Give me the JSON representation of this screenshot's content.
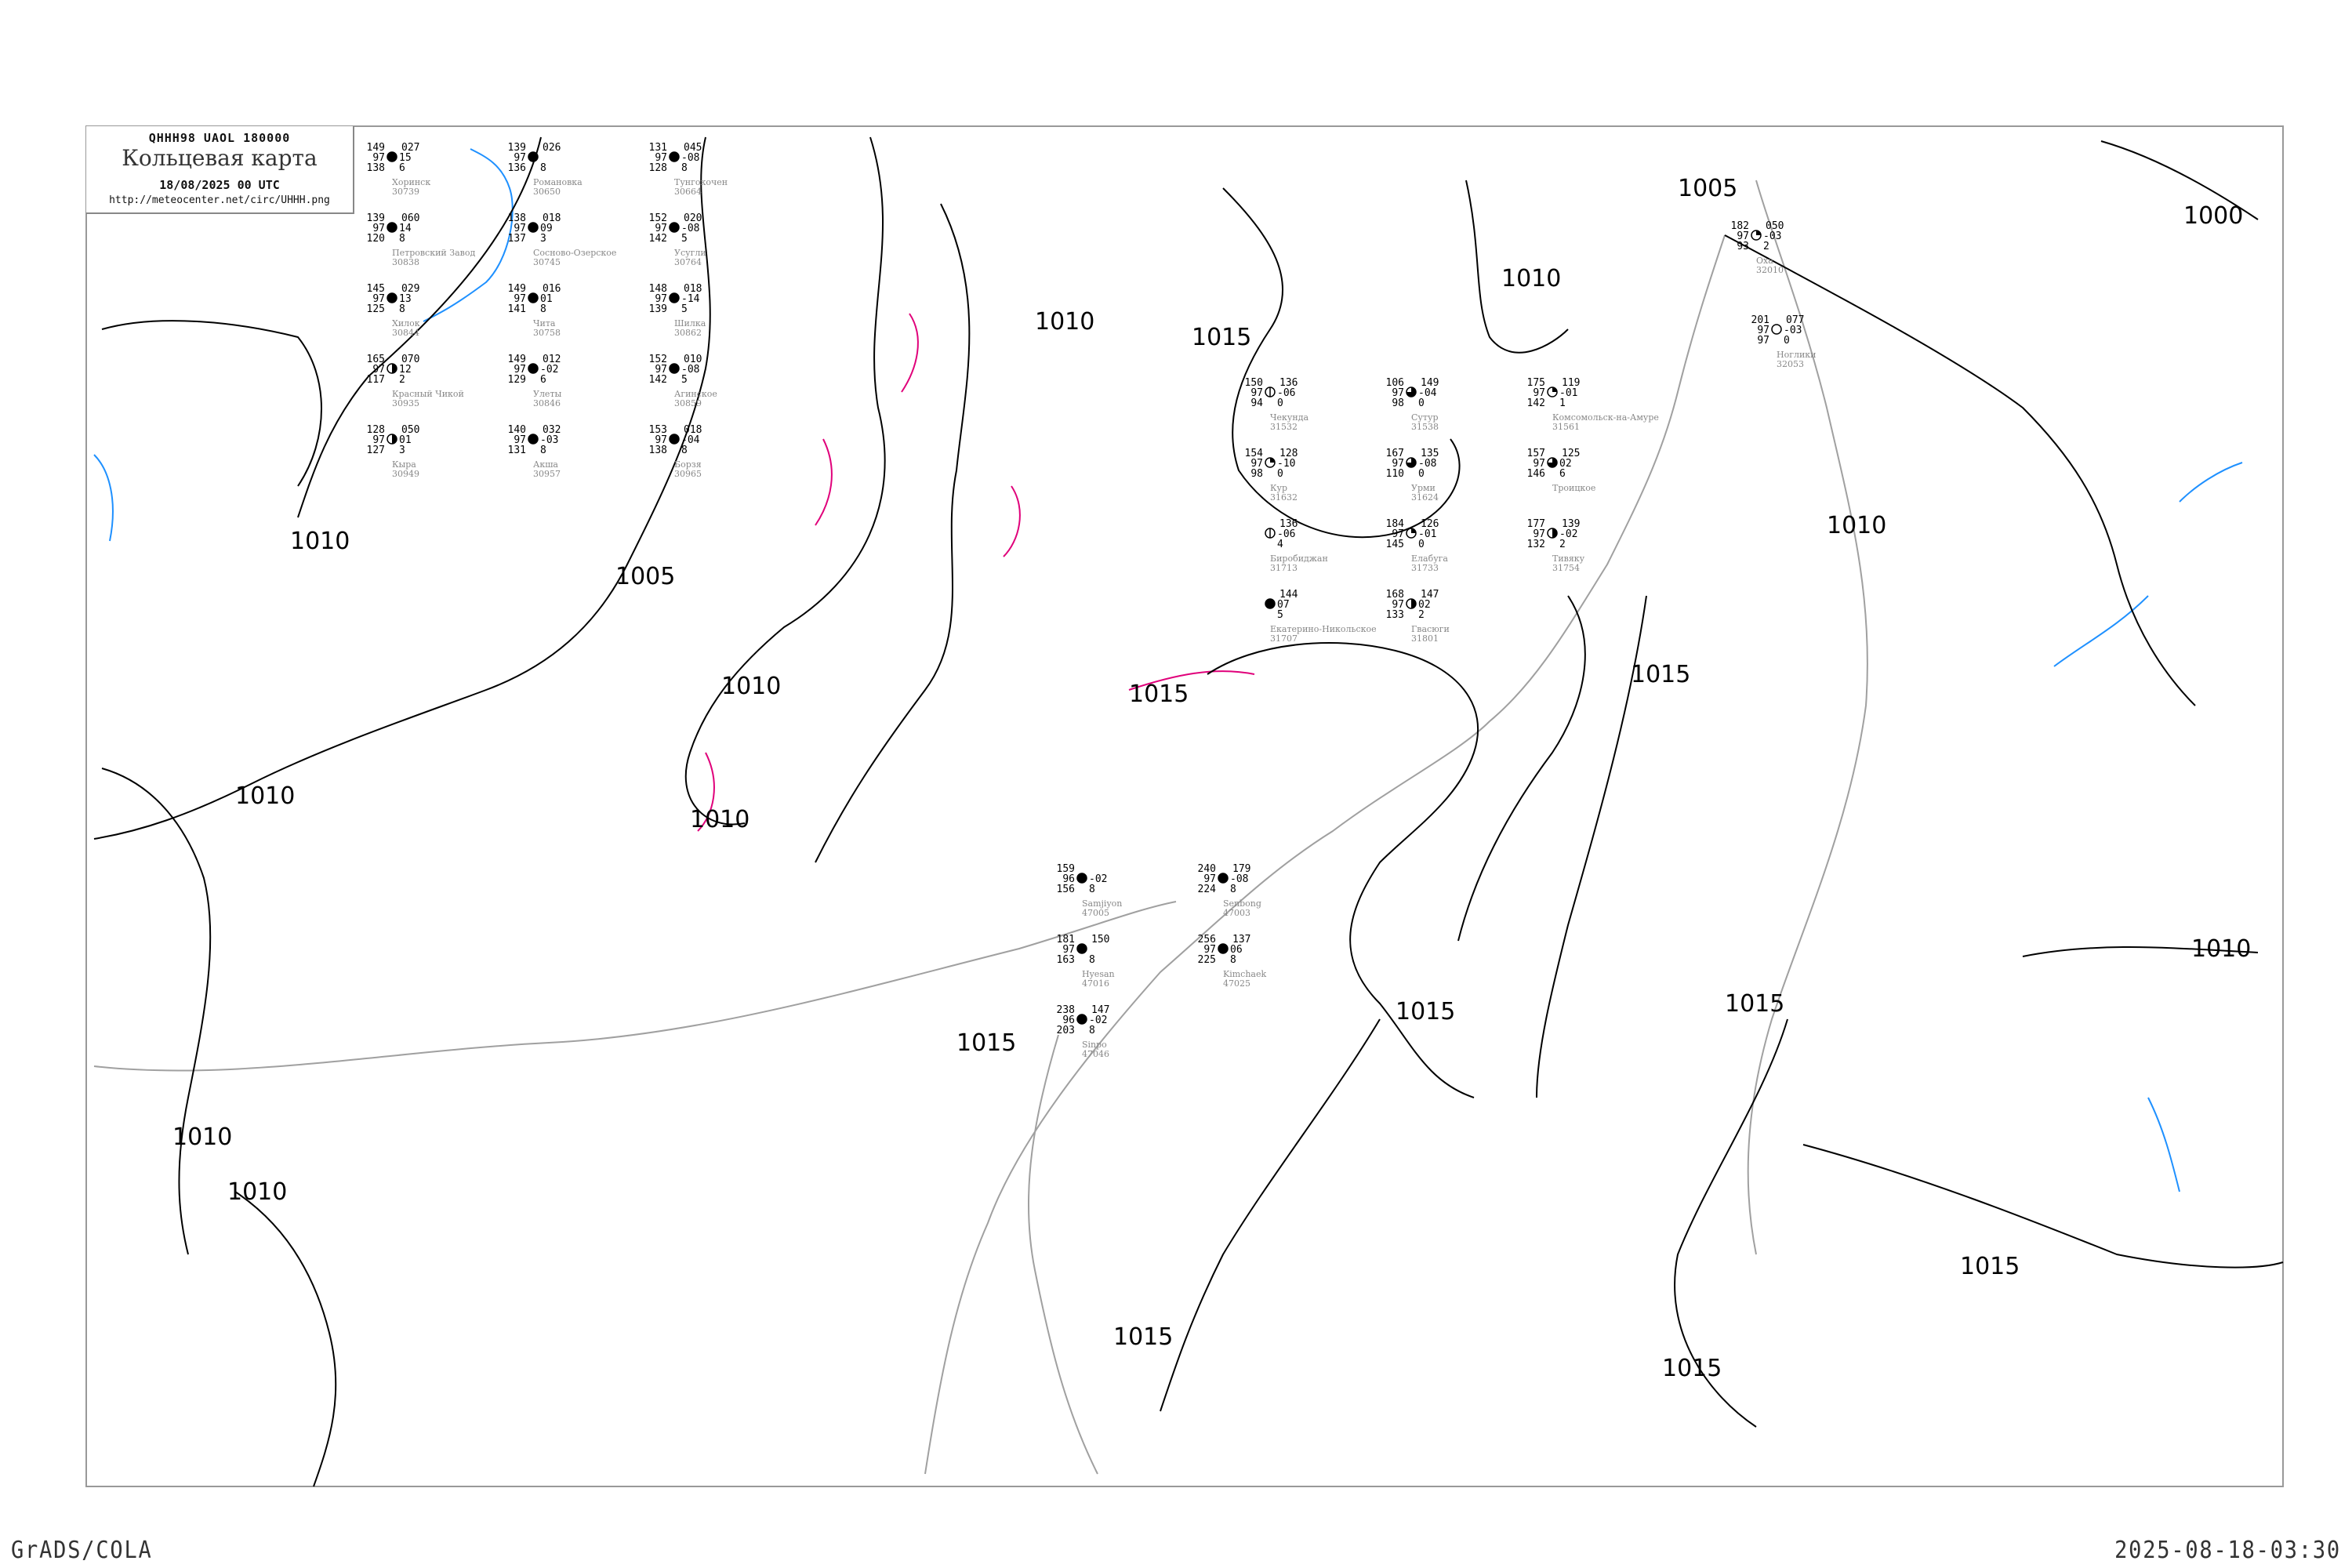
{
  "header": {
    "code": "QHHH98   UAOL   180000",
    "title": "Кольцевая карта",
    "date": "18/08/2025 00 UTC",
    "url": "http://meteocenter.net/circ/UHHH.png"
  },
  "footer": {
    "left": "GrADS/COLA",
    "right": "2025-08-18-03:30"
  },
  "colors": {
    "isobar": "#000000",
    "coastline": "#a0a0a0",
    "river": "#1e90ff",
    "isallobar": "#e0007a",
    "precip_green": "#00c832",
    "precip_yellow": "#f5f08c"
  },
  "isobar_labels": [
    "1010",
    "1005",
    "1010",
    "1010",
    "1010",
    "1010",
    "1010",
    "1010",
    "1015",
    "1015",
    "1015",
    "1015",
    "1015",
    "1010",
    "1005",
    "1000",
    "1010",
    "1015",
    "1010",
    "1015",
    "1015",
    "1015"
  ],
  "stations": [
    {
      "name": "Хоринск",
      "id": "30739",
      "tl": "149",
      "ml": "97",
      "bl": "138",
      "tr": "027",
      "mr": "15",
      "br": "6",
      "cover": "full"
    },
    {
      "name": "Сосново-Озерское",
      "id": "30745",
      "tl": "138",
      "ml": "97",
      "bl": "137",
      "tr": "018",
      "mr": "09",
      "br": "3",
      "cover": "full"
    },
    {
      "name": "Романовка",
      "id": "30650",
      "tl": "139",
      "ml": "97",
      "bl": "136",
      "tr": "026",
      "mr": "",
      "br": "8",
      "cover": "full"
    },
    {
      "name": "Тунгокочен",
      "id": "30664",
      "tl": "131",
      "ml": "97",
      "bl": "128",
      "tr": "045",
      "mr": "-08",
      "br": "8",
      "cover": "full"
    },
    {
      "name": "Петровский Завод",
      "id": "30838",
      "tl": "139",
      "ml": "97",
      "bl": "120",
      "tr": "060",
      "mr": "14",
      "br": "8",
      "cover": "full"
    },
    {
      "name": "Хилок",
      "id": "30844",
      "tl": "145",
      "ml": "97",
      "bl": "125",
      "tr": "029",
      "mr": "13",
      "br": "8",
      "cover": "full"
    },
    {
      "name": "Чита",
      "id": "30758",
      "tl": "149",
      "ml": "97",
      "bl": "141",
      "tr": "016",
      "mr": "01",
      "br": "8",
      "cover": "full"
    },
    {
      "name": "Усугли",
      "id": "30764",
      "tl": "152",
      "ml": "97",
      "bl": "142",
      "tr": "020",
      "mr": "-08",
      "br": "5",
      "cover": "full"
    },
    {
      "name": "Улеты",
      "id": "30846",
      "tl": "149",
      "ml": "97",
      "bl": "129",
      "tr": "012",
      "mr": "-02",
      "br": "6",
      "cover": "full"
    },
    {
      "name": "Шилка",
      "id": "30862",
      "tl": "148",
      "ml": "97",
      "bl": "139",
      "tr": "018",
      "mr": "-14",
      "br": "5",
      "cover": "full"
    },
    {
      "name": "Красный Чикой",
      "id": "30935",
      "tl": "165",
      "ml": "97",
      "bl": "117",
      "tr": "070",
      "mr": "12",
      "br": "2",
      "cover": "half"
    },
    {
      "name": "Агинское",
      "id": "30859",
      "tl": "152",
      "ml": "97",
      "bl": "142",
      "tr": "010",
      "mr": "-08",
      "br": "5",
      "cover": "full"
    },
    {
      "name": "Акша",
      "id": "30957",
      "tl": "140",
      "ml": "97",
      "bl": "131",
      "tr": "032",
      "mr": "-03",
      "br": "8",
      "cover": "full"
    },
    {
      "name": "Кыра",
      "id": "30949",
      "tl": "128",
      "ml": "97",
      "bl": "127",
      "tr": "050",
      "mr": "01",
      "br": "3",
      "cover": "half"
    },
    {
      "name": "Борзя",
      "id": "30965",
      "tl": "153",
      "ml": "97",
      "bl": "138",
      "tr": "018",
      "mr": "-04",
      "br": "8",
      "cover": "full"
    },
    {
      "name": "Чекунда",
      "id": "31532",
      "tl": "150",
      "ml": "97",
      "bl": "94",
      "tr": "136",
      "mr": "-06",
      "br": "0",
      "cover": "line"
    },
    {
      "name": "Сутур",
      "id": "31538",
      "tl": "106",
      "ml": "97",
      "bl": "98",
      "tr": "149",
      "mr": "-04",
      "br": "0",
      "cover": "three"
    },
    {
      "name": "Кур",
      "id": "31632",
      "tl": "154",
      "ml": "97",
      "bl": "98",
      "tr": "128",
      "mr": "-10",
      "br": "0",
      "cover": "quarter"
    },
    {
      "name": "Урми",
      "id": "31624",
      "tl": "167",
      "ml": "97",
      "bl": "110",
      "tr": "135",
      "mr": "-08",
      "br": "0",
      "cover": "three"
    },
    {
      "name": "Биробиджан",
      "id": "31713",
      "tl": "",
      "ml": "",
      "bl": "",
      "tr": "136",
      "mr": "-06",
      "br": "4",
      "cover": "line"
    },
    {
      "name": "Троицкое",
      "id": "",
      "tl": "157",
      "ml": "97",
      "bl": "146",
      "tr": "125",
      "mr": "02",
      "br": "6",
      "cover": "three"
    },
    {
      "name": "Елабуга",
      "id": "31733",
      "tl": "184",
      "ml": "97",
      "bl": "145",
      "tr": "126",
      "mr": "-01",
      "br": "0",
      "cover": "quarter"
    },
    {
      "name": "Тивяку",
      "id": "31754",
      "tl": "177",
      "ml": "97",
      "bl": "132",
      "tr": "139",
      "mr": "-02",
      "br": "2",
      "cover": "half"
    },
    {
      "name": "Гвасюги",
      "id": "31801",
      "tl": "168",
      "ml": "97",
      "bl": "133",
      "tr": "147",
      "mr": "02",
      "br": "2",
      "cover": "half"
    },
    {
      "name": "Комсомольск-на-Амуре",
      "id": "31561",
      "tl": "175",
      "ml": "97",
      "bl": "142",
      "tr": "119",
      "mr": "-01",
      "br": "1",
      "cover": "quarter"
    },
    {
      "name": "Екатерино-Никольское",
      "id": "31707",
      "tl": "",
      "ml": "",
      "bl": "",
      "tr": "144",
      "mr": "07",
      "br": "5",
      "cover": "full"
    },
    {
      "name": "Оха",
      "id": "32010",
      "tl": "182",
      "ml": "97",
      "bl": "93",
      "tr": "050",
      "mr": "-03",
      "br": "2",
      "cover": "quarter"
    },
    {
      "name": "Ноглики",
      "id": "32053",
      "tl": "201",
      "ml": "97",
      "bl": "97",
      "tr": "077",
      "mr": "-03",
      "br": "0",
      "cover": "clear"
    },
    {
      "name": "Hyesan",
      "id": "47016",
      "tl": "181",
      "ml": "97",
      "bl": "163",
      "tr": "150",
      "mr": "",
      "br": "8",
      "cover": "full"
    },
    {
      "name": "Samjiyon",
      "id": "47005",
      "tl": "159",
      "ml": "96",
      "bl": "156",
      "tr": "",
      "mr": "-02",
      "br": "8",
      "cover": "full"
    },
    {
      "name": "Kimchaek",
      "id": "47025",
      "tl": "256",
      "ml": "97",
      "bl": "225",
      "tr": "137",
      "mr": "06",
      "br": "8",
      "cover": "full"
    },
    {
      "name": "Sinpo",
      "id": "47046",
      "tl": "238",
      "ml": "96",
      "bl": "203",
      "tr": "147",
      "mr": "-02",
      "br": "8",
      "cover": "full"
    },
    {
      "name": "Senbong",
      "id": "47003",
      "tl": "240",
      "ml": "97",
      "bl": "224",
      "tr": "179",
      "mr": "-08",
      "br": "8",
      "cover": "full"
    }
  ]
}
